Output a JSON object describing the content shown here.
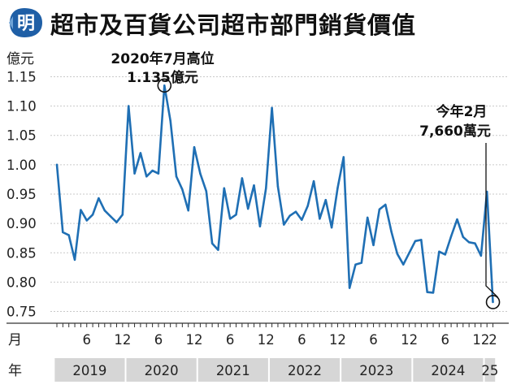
{
  "header": {
    "logo_text": "明",
    "title": "超市及百貨公司超市部門銷貨價值"
  },
  "chart_data": {
    "type": "line",
    "ylabel": "億元",
    "xlabel_month": "月",
    "xlabel_year": "年",
    "ylim": [
      0.73,
      1.17
    ],
    "yticks": [
      "1.15",
      "1.10",
      "1.05",
      "1.00",
      "0.95",
      "0.90",
      "0.85",
      "0.80",
      "0.75"
    ],
    "month_ticks": [
      "6",
      "12",
      "6",
      "12",
      "6",
      "12",
      "6",
      "12",
      "6",
      "12",
      "6",
      "12",
      "2"
    ],
    "years": [
      "2019",
      "2020",
      "2021",
      "2022",
      "2023",
      "2024",
      "25"
    ],
    "series": [
      {
        "color": "#1f6fb4",
        "x": [
          "2019-01",
          "2019-02",
          "2019-03",
          "2019-04",
          "2019-05",
          "2019-06",
          "2019-07",
          "2019-08",
          "2019-09",
          "2019-10",
          "2019-11",
          "2019-12",
          "2020-01",
          "2020-02",
          "2020-03",
          "2020-04",
          "2020-05",
          "2020-06",
          "2020-07",
          "2020-08",
          "2020-09",
          "2020-10",
          "2020-11",
          "2020-12",
          "2021-01",
          "2021-02",
          "2021-03",
          "2021-04",
          "2021-05",
          "2021-06",
          "2021-07",
          "2021-08",
          "2021-09",
          "2021-10",
          "2021-11",
          "2021-12",
          "2022-01",
          "2022-02",
          "2022-03",
          "2022-04",
          "2022-05",
          "2022-06",
          "2022-07",
          "2022-08",
          "2022-09",
          "2022-10",
          "2022-11",
          "2022-12",
          "2023-01",
          "2023-02",
          "2023-03",
          "2023-04",
          "2023-05",
          "2023-06",
          "2023-07",
          "2023-08",
          "2023-09",
          "2023-10",
          "2023-11",
          "2023-12",
          "2024-01",
          "2024-02",
          "2024-03",
          "2024-04",
          "2024-05",
          "2024-06",
          "2024-07",
          "2024-08",
          "2024-09",
          "2024-10",
          "2024-11",
          "2024-12",
          "2025-01",
          "2025-02"
        ],
        "values": [
          1.0,
          0.885,
          0.88,
          0.838,
          0.923,
          0.905,
          0.915,
          0.943,
          0.922,
          0.912,
          0.902,
          0.915,
          1.1,
          0.985,
          1.02,
          0.98,
          0.99,
          0.985,
          1.135,
          1.075,
          0.98,
          0.958,
          0.922,
          1.03,
          0.985,
          0.955,
          0.866,
          0.855,
          0.96,
          0.908,
          0.915,
          0.977,
          0.925,
          0.965,
          0.895,
          0.96,
          1.097,
          0.963,
          0.898,
          0.913,
          0.92,
          0.906,
          0.93,
          0.972,
          0.908,
          0.94,
          0.893,
          0.96,
          1.013,
          0.79,
          0.83,
          0.833,
          0.91,
          0.863,
          0.924,
          0.932,
          0.886,
          0.848,
          0.83,
          0.85,
          0.87,
          0.872,
          0.783,
          0.782,
          0.852,
          0.847,
          0.878,
          0.907,
          0.877,
          0.868,
          0.866,
          0.845,
          0.954,
          0.766
        ]
      }
    ],
    "annotations": [
      {
        "line1": "2020年7月高位",
        "line2": "1.135億元",
        "point_x": "2020-07",
        "point_value": 1.135
      },
      {
        "line1": "今年2月",
        "line2": "7,660萬元",
        "point_x": "2025-02",
        "point_value": 0.766
      }
    ],
    "grid": true
  }
}
